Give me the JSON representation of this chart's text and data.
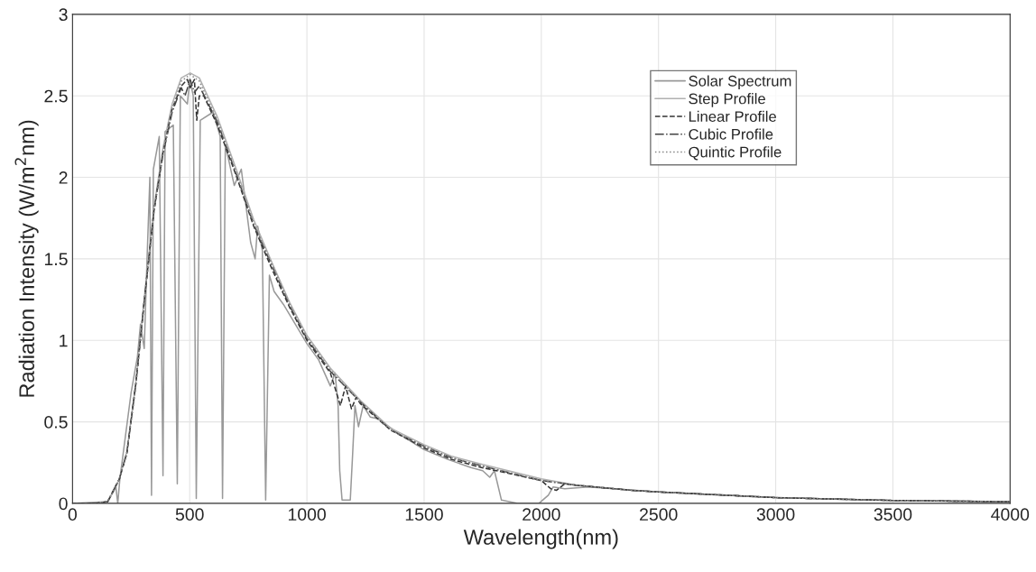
{
  "chart_data": {
    "type": "line",
    "xlabel": "Wavelength(nm)",
    "ylabel": "Radiation Intensity (W/m$^{2}$nm)",
    "xlim": [
      0,
      4000
    ],
    "xticks": [
      0,
      500,
      1000,
      1500,
      2000,
      2500,
      3000,
      3500,
      4000
    ],
    "ylim": [
      0,
      3
    ],
    "yticks": [
      0,
      0.5,
      1,
      1.5,
      2,
      2.5,
      3
    ],
    "grid": true,
    "legend": "top right",
    "marker": "none",
    "series": [
      {
        "name": "Solar Spectrum",
        "color": "#999999",
        "line_style": "solid",
        "x": [
          0,
          150,
          185,
          193,
          202,
          250,
          277,
          290,
          306,
          318,
          330,
          337,
          345,
          370,
          386,
          395,
          430,
          447,
          460,
          490,
          500,
          515,
          528,
          545,
          600,
          630,
          640,
          652,
          690,
          720,
          760,
          779,
          790,
          810,
          824,
          840,
          860,
          900,
          950,
          1000,
          1050,
          1100,
          1120,
          1133,
          1140,
          1150,
          1185,
          1195,
          1205,
          1220,
          1240,
          1270,
          1300,
          1350,
          1400,
          1500,
          1600,
          1700,
          1750,
          1780,
          1800,
          1830,
          1900,
          1990,
          2030,
          2050,
          2100,
          2200,
          2500,
          3000,
          3500,
          4000
        ],
        "values": [
          0,
          0.01,
          0.1,
          0.0,
          0.15,
          0.68,
          0.9,
          1.1,
          0.95,
          1.5,
          2.0,
          0.05,
          2.05,
          2.25,
          0.17,
          2.28,
          2.32,
          0.12,
          2.5,
          2.45,
          2.6,
          2.5,
          0.03,
          2.35,
          2.4,
          2.25,
          0.03,
          2.2,
          1.95,
          2.05,
          1.6,
          1.5,
          1.7,
          1.55,
          0.02,
          1.4,
          1.3,
          1.22,
          1.1,
          0.98,
          0.88,
          0.72,
          0.8,
          0.6,
          0.2,
          0.02,
          0.02,
          0.3,
          0.6,
          0.47,
          0.6,
          0.53,
          0.52,
          0.47,
          0.42,
          0.33,
          0.27,
          0.22,
          0.2,
          0.16,
          0.2,
          0.02,
          0.0,
          0.0,
          0.05,
          0.1,
          0.09,
          0.1,
          0.07,
          0.035,
          0.018,
          0.01
        ]
      },
      {
        "name": "Step Profile",
        "color": "#b0b0b0",
        "line_style": "solid",
        "x": [
          0,
          100,
          150,
          200,
          232,
          270,
          309,
          348,
          386,
          425,
          464,
          502,
          541,
          618,
          696,
          773,
          850,
          927,
          1000,
          1100,
          1229,
          1357,
          1500,
          1615,
          1745,
          2000,
          2156,
          2386,
          2500,
          3000,
          3500,
          4000
        ],
        "values": [
          0,
          0,
          0.01,
          0.15,
          0.32,
          0.74,
          1.3,
          1.82,
          2.18,
          2.45,
          2.61,
          2.64,
          2.61,
          2.37,
          2.06,
          1.74,
          1.48,
          1.23,
          1.03,
          0.83,
          0.63,
          0.46,
          0.36,
          0.29,
          0.24,
          0.15,
          0.11,
          0.08,
          0.07,
          0.035,
          0.018,
          0.01
        ]
      },
      {
        "name": "Linear Profile",
        "color": "#333333",
        "line_style": "dashed",
        "x": [
          0,
          100,
          150,
          200,
          232,
          270,
          309,
          348,
          386,
          425,
          464,
          490,
          502,
          520,
          530,
          541,
          560,
          618,
          696,
          773,
          850,
          927,
          1000,
          1100,
          1143,
          1165,
          1190,
          1210,
          1229,
          1357,
          1500,
          1615,
          1745,
          2000,
          2040,
          2065,
          2100,
          2156,
          2386,
          2500,
          3000,
          3500,
          4000
        ],
        "values": [
          0,
          0,
          0.01,
          0.15,
          0.31,
          0.73,
          1.28,
          1.8,
          2.15,
          2.42,
          2.56,
          2.6,
          2.55,
          2.6,
          2.35,
          2.5,
          2.5,
          2.32,
          2.02,
          1.7,
          1.44,
          1.2,
          1.0,
          0.8,
          0.6,
          0.72,
          0.58,
          0.65,
          0.61,
          0.45,
          0.34,
          0.27,
          0.22,
          0.14,
          0.09,
          0.08,
          0.12,
          0.11,
          0.08,
          0.07,
          0.035,
          0.018,
          0.01
        ]
      },
      {
        "name": "Cubic Profile",
        "color": "#444444",
        "line_style": "dashdot",
        "x": [
          0,
          100,
          150,
          200,
          232,
          270,
          309,
          348,
          386,
          425,
          464,
          480,
          502,
          520,
          541,
          618,
          696,
          773,
          850,
          927,
          1000,
          1100,
          1229,
          1357,
          1500,
          1615,
          1745,
          2000,
          2156,
          2386,
          2500,
          3000,
          3500,
          4000
        ],
        "values": [
          0,
          0,
          0.01,
          0.15,
          0.31,
          0.73,
          1.28,
          1.8,
          2.14,
          2.4,
          2.55,
          2.5,
          2.6,
          2.52,
          2.56,
          2.34,
          2.03,
          1.71,
          1.46,
          1.21,
          1.01,
          0.81,
          0.62,
          0.45,
          0.35,
          0.28,
          0.23,
          0.14,
          0.11,
          0.08,
          0.07,
          0.035,
          0.018,
          0.01
        ]
      },
      {
        "name": "Quintic Profile",
        "color": "#888888",
        "line_style": "dotted",
        "x": [
          0,
          100,
          150,
          200,
          232,
          270,
          309,
          348,
          386,
          425,
          464,
          502,
          541,
          618,
          696,
          773,
          850,
          927,
          1000,
          1100,
          1229,
          1357,
          1500,
          1615,
          1745,
          2000,
          2156,
          2386,
          2500,
          3000,
          3500,
          4000
        ],
        "values": [
          0,
          0,
          0.01,
          0.15,
          0.31,
          0.73,
          1.28,
          1.8,
          2.15,
          2.42,
          2.59,
          2.63,
          2.59,
          2.35,
          2.04,
          1.72,
          1.47,
          1.22,
          1.02,
          0.82,
          0.62,
          0.45,
          0.35,
          0.28,
          0.23,
          0.14,
          0.11,
          0.08,
          0.07,
          0.035,
          0.018,
          0.01
        ]
      }
    ]
  }
}
